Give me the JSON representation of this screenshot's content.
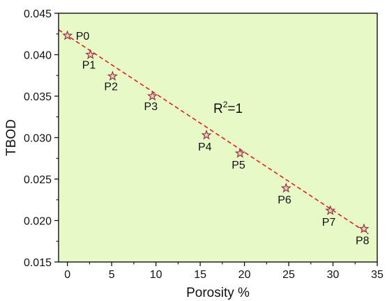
{
  "chart_data": {
    "type": "scatter",
    "xlabel": "Porosity %",
    "ylabel": "TBOD",
    "xlim": [
      -1,
      35
    ],
    "ylim": [
      0.015,
      0.045
    ],
    "xticks": [
      0,
      5,
      10,
      15,
      20,
      25,
      30,
      35
    ],
    "yticks": [
      0.015,
      0.02,
      0.025,
      0.03,
      0.035,
      0.04,
      0.045
    ],
    "grid": false,
    "background_color": "#e6f9c6",
    "marker": "star",
    "marker_color": "#8a3a3a",
    "fit_line_color": "#e02020",
    "fit_line_style": "dashed",
    "annotation": {
      "base": "R",
      "sup": "2",
      "rest": "=1"
    },
    "points": [
      {
        "label": "P0",
        "x": 0.0,
        "y": 0.0423
      },
      {
        "label": "P1",
        "x": 2.6,
        "y": 0.04
      },
      {
        "label": "P2",
        "x": 5.1,
        "y": 0.0374
      },
      {
        "label": "P3",
        "x": 9.6,
        "y": 0.035
      },
      {
        "label": "P4",
        "x": 15.7,
        "y": 0.0303
      },
      {
        "label": "P5",
        "x": 19.5,
        "y": 0.0281
      },
      {
        "label": "P6",
        "x": 24.7,
        "y": 0.0239
      },
      {
        "label": "P7",
        "x": 29.7,
        "y": 0.0212
      },
      {
        "label": "P8",
        "x": 33.5,
        "y": 0.019
      }
    ],
    "fit_line": {
      "x": [
        -1,
        34
      ],
      "y": [
        0.043,
        0.0184
      ]
    }
  }
}
